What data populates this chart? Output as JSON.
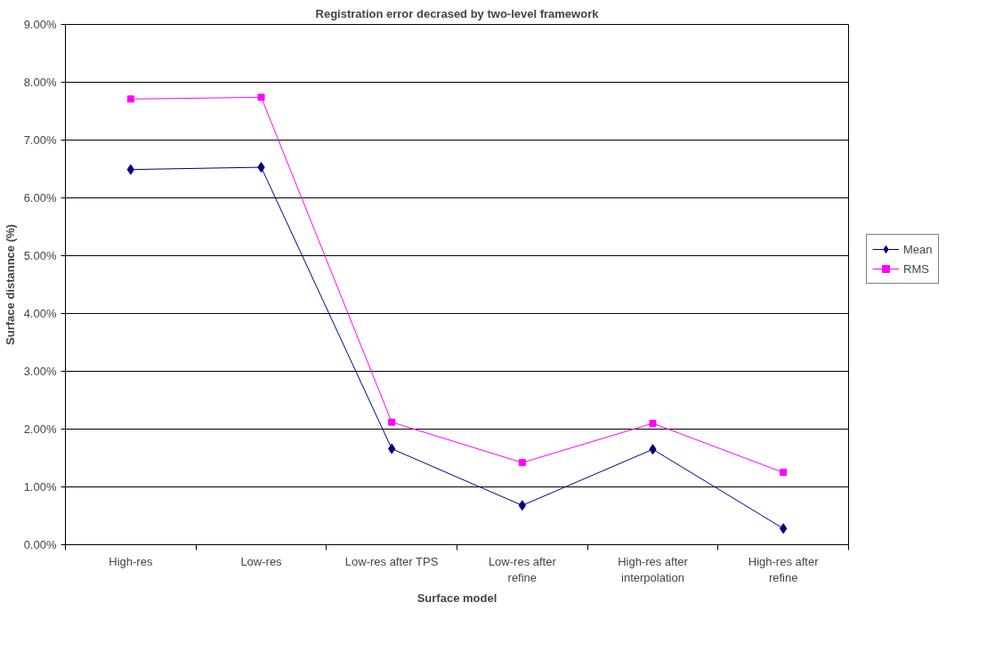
{
  "chart_data": {
    "type": "line",
    "title": "Registration error decrased by two-level framework",
    "xlabel": "Surface model",
    "ylabel": "Surface distannce (%)",
    "categories": [
      "High-res",
      "Low-res",
      "Low-res after TPS",
      "Low-res after\nrefine",
      "High-res after\ninterpolation",
      "High-res after\nrefine"
    ],
    "series": [
      {
        "name": "Mean",
        "color": "#000080",
        "marker": "diamond",
        "values": [
          6.49,
          6.53,
          1.66,
          0.68,
          1.65,
          0.28
        ]
      },
      {
        "name": "RMS",
        "color": "#ff00ff",
        "marker": "square",
        "values": [
          7.71,
          7.74,
          2.12,
          1.42,
          2.1,
          1.25
        ]
      }
    ],
    "ylim": [
      0,
      9
    ],
    "yticks": [
      {
        "value": 0,
        "label": "0.00%"
      },
      {
        "value": 1,
        "label": "1.00%"
      },
      {
        "value": 2,
        "label": "2.00%"
      },
      {
        "value": 3,
        "label": "3.00%"
      },
      {
        "value": 4,
        "label": "4.00%"
      },
      {
        "value": 5,
        "label": "5.00%"
      },
      {
        "value": 6,
        "label": "6.00%"
      },
      {
        "value": 7,
        "label": "7.00%"
      },
      {
        "value": 8,
        "label": "8.00%"
      },
      {
        "value": 9,
        "label": "9.00%"
      }
    ],
    "grid": "y",
    "legend": "right",
    "line_style": "solid"
  }
}
